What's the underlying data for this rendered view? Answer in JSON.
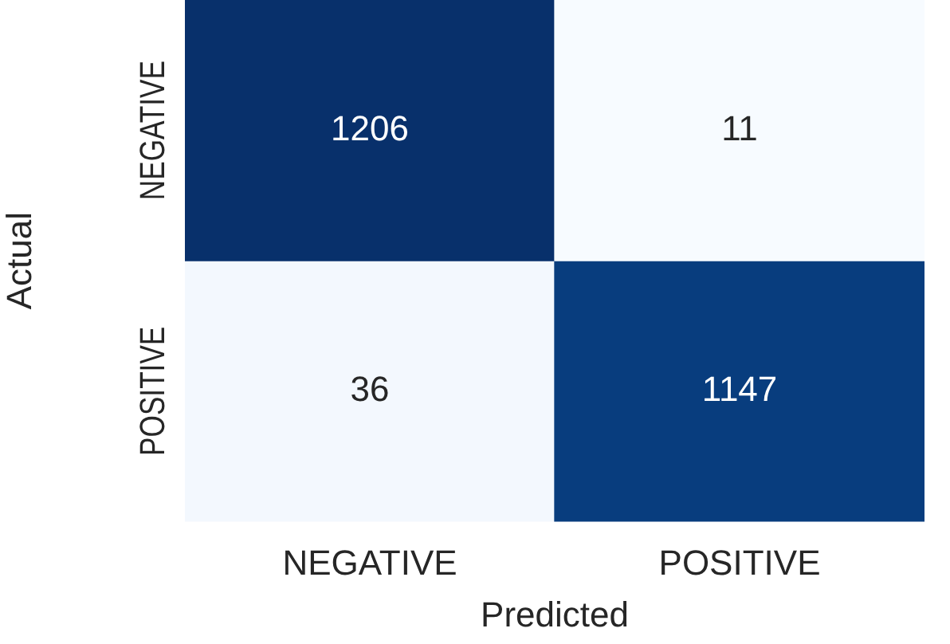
{
  "chart_data": {
    "type": "heatmap",
    "xlabel": "Predicted",
    "ylabel": "Actual",
    "categories": [
      "NEGATIVE",
      "POSITIVE"
    ],
    "y_categories": [
      "NEGATIVE",
      "POSITIVE"
    ],
    "cells": [
      [
        1206,
        11
      ],
      [
        36,
        1147
      ]
    ],
    "data_labels": true
  }
}
